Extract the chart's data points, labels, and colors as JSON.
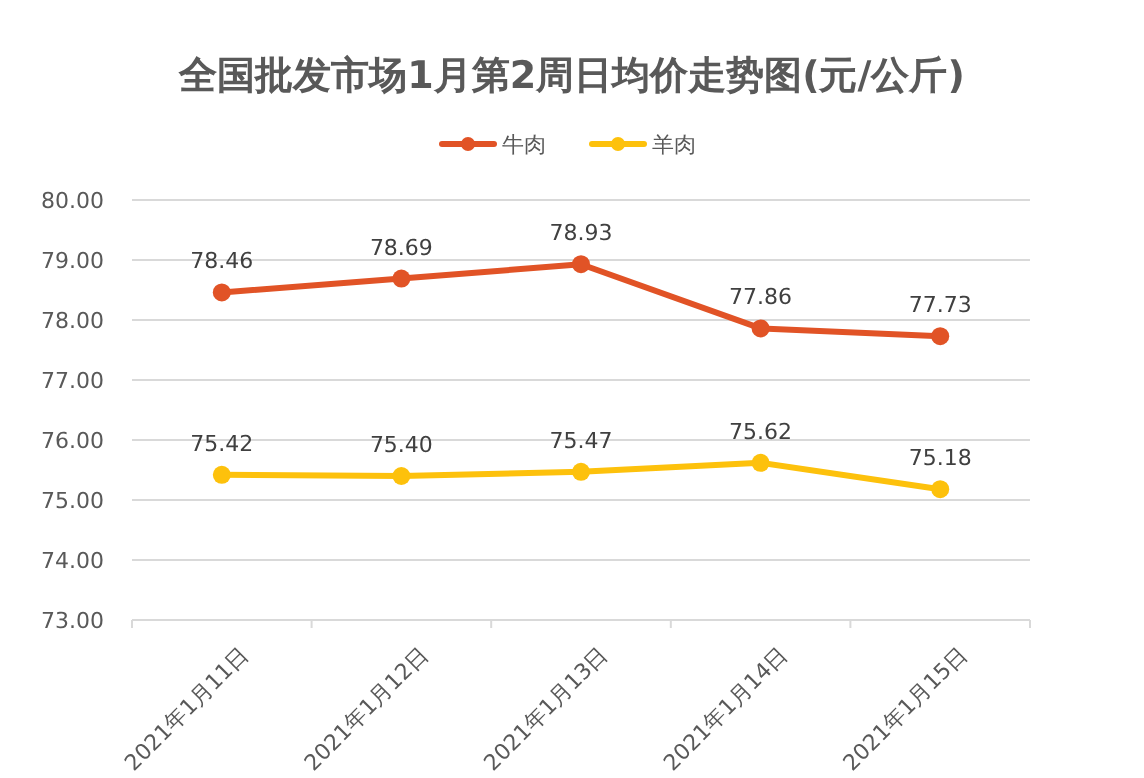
{
  "chart_data": {
    "type": "line",
    "title": "全国批发市场1月第2周日均价走势图(元/公斤)",
    "categories": [
      "2021年1月11日",
      "2021年1月12日",
      "2021年1月13日",
      "2021年1月14日",
      "2021年1月15日"
    ],
    "series": [
      {
        "name": "牛肉",
        "color": "#e15326",
        "values": [
          78.46,
          78.69,
          78.93,
          77.86,
          77.73
        ]
      },
      {
        "name": "羊肉",
        "color": "#fdc10c",
        "values": [
          75.42,
          75.4,
          75.47,
          75.62,
          75.18
        ],
        "value_labels": [
          "75.42",
          "75.40",
          "75.47",
          "75.62",
          "75.18"
        ]
      }
    ],
    "ylim": [
      73,
      80
    ],
    "yticks": [
      {
        "value": 73,
        "label": "73.00"
      },
      {
        "value": 74,
        "label": "74.00"
      },
      {
        "value": 75,
        "label": "75.00"
      },
      {
        "value": 76,
        "label": "76.00"
      },
      {
        "value": 77,
        "label": "77.00"
      },
      {
        "value": 78,
        "label": "78.00"
      },
      {
        "value": 79,
        "label": "79.00"
      },
      {
        "value": 80,
        "label": "80.00"
      }
    ],
    "grid": "y",
    "legend": "top",
    "marker": "circle",
    "line_style": "solid",
    "data_labels": true
  }
}
